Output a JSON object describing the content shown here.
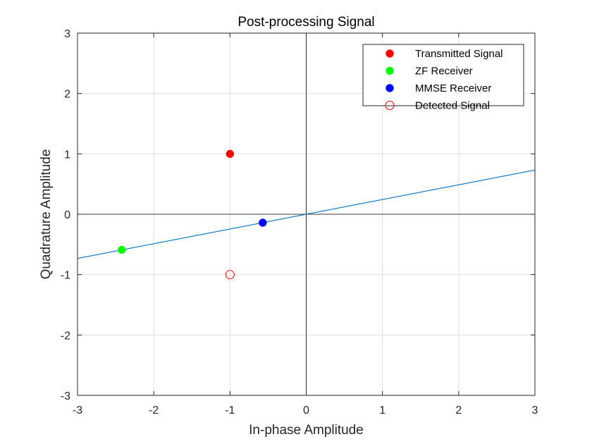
{
  "chart_data": {
    "type": "scatter",
    "title": "Post-processing Signal",
    "xlabel": "In-phase Amplitude",
    "ylabel": "Quadrature Amplitude",
    "xlim": [
      -3,
      3
    ],
    "ylim": [
      -3,
      3
    ],
    "xticks": [
      -3,
      -2,
      -1,
      0,
      1,
      2,
      3
    ],
    "yticks": [
      -3,
      -2,
      -1,
      0,
      1,
      2,
      3
    ],
    "grid": true,
    "legend_position": "top-right",
    "series": [
      {
        "name": "Transmitted Signal",
        "marker": "filled-circle",
        "color": "#ff0000",
        "points": [
          [
            -1,
            1
          ]
        ]
      },
      {
        "name": "ZF Receiver",
        "marker": "filled-circle",
        "color": "#00ff00",
        "points": [
          [
            -2.42,
            -0.59
          ]
        ]
      },
      {
        "name": "MMSE Receiver",
        "marker": "filled-circle",
        "color": "#0000ff",
        "points": [
          [
            -0.57,
            -0.14
          ]
        ]
      },
      {
        "name": "Detected Signal",
        "marker": "open-circle",
        "color": "#ff0000",
        "points": [
          [
            -1,
            -1
          ]
        ]
      }
    ],
    "reference_line": {
      "color": "#0072bd",
      "slope": 0.244,
      "x_range": [
        -3,
        3
      ]
    },
    "zero_axes": {
      "color": "#000000"
    }
  }
}
